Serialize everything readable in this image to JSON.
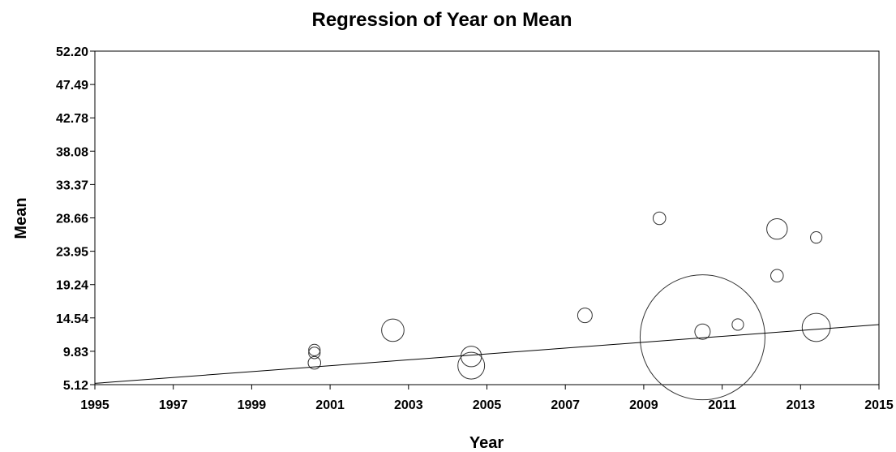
{
  "chart_data": {
    "type": "scatter",
    "title": "Regression of Year on Mean",
    "xlabel": "Year",
    "ylabel": "Mean",
    "xlim": [
      1995,
      2015
    ],
    "ylim": [
      5.12,
      52.2
    ],
    "x_ticks": [
      1995,
      1997,
      1999,
      2001,
      2003,
      2005,
      2007,
      2009,
      2011,
      2013,
      2015
    ],
    "y_ticks": [
      "5.12",
      "9.83",
      "14.54",
      "19.24",
      "23.95",
      "28.66",
      "33.37",
      "38.08",
      "42.78",
      "47.49",
      "52.20"
    ],
    "grid": false,
    "legend": "none",
    "marker": "open circle, size proportional to weight",
    "points": [
      {
        "x": 2000.6,
        "y": 10.0,
        "weight": 0.5
      },
      {
        "x": 2000.6,
        "y": 9.6,
        "weight": 0.5
      },
      {
        "x": 2000.6,
        "y": 8.2,
        "weight": 0.6
      },
      {
        "x": 2002.6,
        "y": 12.8,
        "weight": 1.9
      },
      {
        "x": 2004.6,
        "y": 9.1,
        "weight": 1.6
      },
      {
        "x": 2004.6,
        "y": 7.8,
        "weight": 2.7
      },
      {
        "x": 2007.5,
        "y": 14.9,
        "weight": 0.8
      },
      {
        "x": 2009.4,
        "y": 28.6,
        "weight": 0.6
      },
      {
        "x": 2010.5,
        "y": 12.6,
        "weight": 0.9
      },
      {
        "x": 2010.5,
        "y": 11.8,
        "weight": 59
      },
      {
        "x": 2011.4,
        "y": 13.6,
        "weight": 0.5
      },
      {
        "x": 2012.4,
        "y": 27.1,
        "weight": 1.6
      },
      {
        "x": 2012.4,
        "y": 20.5,
        "weight": 0.6
      },
      {
        "x": 2013.4,
        "y": 25.9,
        "weight": 0.5
      },
      {
        "x": 2013.4,
        "y": 13.2,
        "weight": 3.0
      }
    ],
    "regression_line": {
      "x": [
        1995,
        2015
      ],
      "y": [
        5.3,
        13.6
      ]
    }
  }
}
